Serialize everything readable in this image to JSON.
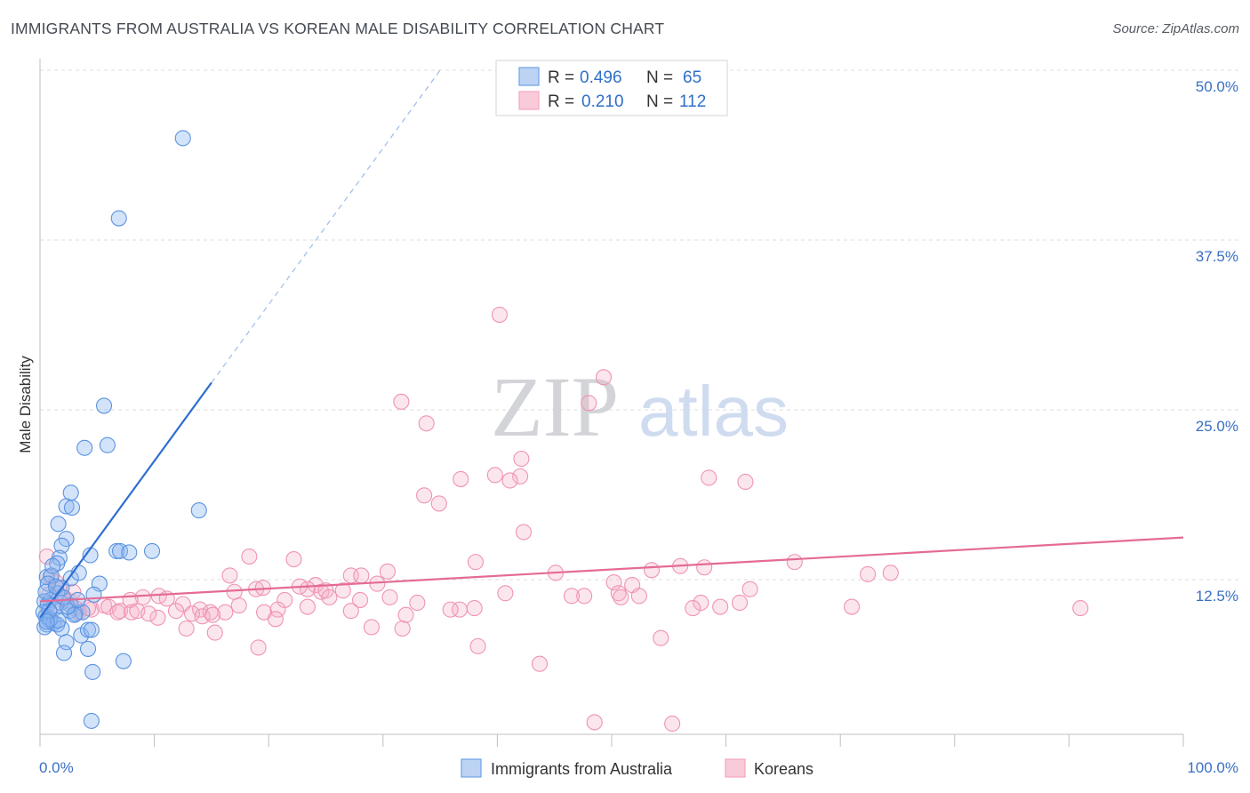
{
  "title": "IMMIGRANTS FROM AUSTRALIA VS KOREAN MALE DISABILITY CORRELATION CHART",
  "source": "Source: ZipAtlas.com",
  "watermark": {
    "zip": "ZIP",
    "atlas": "atlas"
  },
  "legend": {
    "r_label": "R =",
    "n_label": "N =",
    "rows": [
      {
        "r": "0.496",
        "n": "65"
      },
      {
        "r": "0.210",
        "n": "112"
      }
    ]
  },
  "chart_data": {
    "type": "scatter",
    "title": "IMMIGRANTS FROM AUSTRALIA VS KOREAN MALE DISABILITY CORRELATION CHART",
    "xlabel": "",
    "ylabel": "Male Disability",
    "xlim": [
      0,
      100
    ],
    "ylim": [
      0,
      52
    ],
    "x_tick_labels": [
      "0.0%",
      "100.0%"
    ],
    "y_ticks": [
      12.5,
      25.0,
      37.5,
      50.0
    ],
    "y_tick_labels": [
      "12.5%",
      "25.0%",
      "37.5%",
      "50.0%"
    ],
    "grid": true,
    "legend_position": "top-center",
    "series": [
      {
        "name": "Immigrants from Australia",
        "color": "#6fa3e8",
        "line_color": "#2f6fd1",
        "r": 0.496,
        "n": 65,
        "trend": {
          "x": [
            0.0,
            15.0
          ],
          "y": [
            9.7,
            27.0
          ],
          "dashed_to": [
            35.0,
            50.0
          ]
        },
        "points": [
          [
            12.5,
            45.0
          ],
          [
            6.9,
            39.1
          ],
          [
            5.6,
            25.3
          ],
          [
            5.9,
            22.4
          ],
          [
            3.9,
            22.2
          ],
          [
            13.9,
            17.6
          ],
          [
            2.7,
            18.9
          ],
          [
            2.3,
            17.9
          ],
          [
            2.8,
            17.8
          ],
          [
            1.6,
            16.6
          ],
          [
            2.3,
            15.5
          ],
          [
            1.9,
            15.0
          ],
          [
            6.7,
            14.6
          ],
          [
            7.0,
            14.6
          ],
          [
            9.8,
            14.6
          ],
          [
            7.8,
            14.5
          ],
          [
            4.4,
            14.3
          ],
          [
            1.7,
            14.1
          ],
          [
            1.5,
            13.7
          ],
          [
            0.6,
            12.7
          ],
          [
            1.0,
            12.8
          ],
          [
            2.7,
            12.6
          ],
          [
            3.4,
            13.0
          ],
          [
            5.2,
            12.2
          ],
          [
            1.9,
            11.9
          ],
          [
            1.5,
            11.5
          ],
          [
            0.9,
            11.0
          ],
          [
            0.4,
            10.9
          ],
          [
            0.7,
            10.7
          ],
          [
            4.7,
            11.4
          ],
          [
            1.8,
            10.8
          ],
          [
            2.7,
            10.6
          ],
          [
            2.6,
            10.2
          ],
          [
            3.1,
            10.0
          ],
          [
            3.7,
            10.1
          ],
          [
            0.3,
            10.1
          ],
          [
            0.5,
            9.8
          ],
          [
            0.8,
            9.5
          ],
          [
            0.6,
            9.2
          ],
          [
            0.4,
            9.0
          ],
          [
            1.2,
            9.3
          ],
          [
            1.5,
            9.2
          ],
          [
            1.9,
            8.9
          ],
          [
            3.6,
            8.4
          ],
          [
            4.2,
            8.8
          ],
          [
            4.5,
            8.8
          ],
          [
            2.3,
            7.9
          ],
          [
            4.2,
            7.4
          ],
          [
            2.1,
            7.1
          ],
          [
            7.3,
            6.5
          ],
          [
            4.6,
            5.7
          ],
          [
            4.5,
            2.1
          ],
          [
            0.9,
            9.6
          ],
          [
            1.3,
            10.4
          ],
          [
            2.0,
            11.2
          ],
          [
            0.7,
            12.2
          ],
          [
            1.1,
            13.5
          ],
          [
            3.0,
            9.9
          ],
          [
            0.5,
            11.6
          ],
          [
            1.6,
            9.5
          ],
          [
            2.4,
            10.5
          ],
          [
            0.8,
            10.2
          ],
          [
            1.4,
            12.0
          ],
          [
            0.6,
            9.4
          ],
          [
            3.3,
            11.0
          ]
        ]
      },
      {
        "name": "Koreans",
        "color": "#f4a6bf",
        "line_color": "#e46b95",
        "r": 0.21,
        "n": 112,
        "trend": {
          "x": [
            0.0,
            100.0
          ],
          "y": [
            10.9,
            15.6
          ]
        },
        "points": [
          [
            40.2,
            32.0
          ],
          [
            49.3,
            27.4
          ],
          [
            31.6,
            25.6
          ],
          [
            48.0,
            25.5
          ],
          [
            33.8,
            24.0
          ],
          [
            42.1,
            21.4
          ],
          [
            42.0,
            20.1
          ],
          [
            36.8,
            19.9
          ],
          [
            39.8,
            20.2
          ],
          [
            41.1,
            19.8
          ],
          [
            58.5,
            20.0
          ],
          [
            61.7,
            19.7
          ],
          [
            33.6,
            18.7
          ],
          [
            34.9,
            18.1
          ],
          [
            42.3,
            16.0
          ],
          [
            18.3,
            14.2
          ],
          [
            22.2,
            14.0
          ],
          [
            38.1,
            13.8
          ],
          [
            66.0,
            13.8
          ],
          [
            56.0,
            13.5
          ],
          [
            58.1,
            13.4
          ],
          [
            53.5,
            13.2
          ],
          [
            45.1,
            13.0
          ],
          [
            72.4,
            12.9
          ],
          [
            74.4,
            13.0
          ],
          [
            16.6,
            12.8
          ],
          [
            27.2,
            12.8
          ],
          [
            28.1,
            12.8
          ],
          [
            30.4,
            13.1
          ],
          [
            29.5,
            12.2
          ],
          [
            24.1,
            12.1
          ],
          [
            50.2,
            12.3
          ],
          [
            51.8,
            12.1
          ],
          [
            23.4,
            11.8
          ],
          [
            18.9,
            11.8
          ],
          [
            19.5,
            11.9
          ],
          [
            17.0,
            11.6
          ],
          [
            24.6,
            11.6
          ],
          [
            26.5,
            11.7
          ],
          [
            25.0,
            11.7
          ],
          [
            40.7,
            11.5
          ],
          [
            47.6,
            11.3
          ],
          [
            62.1,
            11.8
          ],
          [
            50.6,
            11.5
          ],
          [
            52.4,
            11.3
          ],
          [
            46.5,
            11.3
          ],
          [
            50.8,
            11.2
          ],
          [
            9.0,
            11.2
          ],
          [
            10.4,
            11.3
          ],
          [
            11.1,
            11.1
          ],
          [
            7.9,
            11.0
          ],
          [
            12.5,
            10.7
          ],
          [
            14.0,
            10.3
          ],
          [
            21.4,
            11.0
          ],
          [
            25.3,
            11.2
          ],
          [
            28.0,
            11.0
          ],
          [
            30.6,
            11.2
          ],
          [
            33.0,
            10.8
          ],
          [
            36.7,
            10.3
          ],
          [
            38.0,
            10.4
          ],
          [
            57.8,
            10.8
          ],
          [
            61.2,
            10.8
          ],
          [
            59.5,
            10.5
          ],
          [
            57.1,
            10.4
          ],
          [
            71.0,
            10.5
          ],
          [
            91.0,
            10.4
          ],
          [
            5.6,
            10.6
          ],
          [
            6.0,
            10.5
          ],
          [
            7.0,
            10.2
          ],
          [
            8.0,
            10.1
          ],
          [
            8.5,
            10.2
          ],
          [
            11.9,
            10.2
          ],
          [
            13.3,
            10.0
          ],
          [
            14.9,
            10.1
          ],
          [
            16.2,
            10.1
          ],
          [
            19.6,
            10.1
          ],
          [
            20.8,
            10.3
          ],
          [
            23.4,
            10.5
          ],
          [
            27.2,
            10.2
          ],
          [
            32.0,
            9.9
          ],
          [
            3.1,
            10.4
          ],
          [
            4.5,
            10.3
          ],
          [
            6.8,
            10.1
          ],
          [
            10.3,
            9.7
          ],
          [
            14.2,
            9.8
          ],
          [
            15.1,
            9.9
          ],
          [
            20.6,
            9.6
          ],
          [
            12.8,
            8.9
          ],
          [
            15.3,
            8.6
          ],
          [
            29.0,
            9.0
          ],
          [
            31.7,
            8.9
          ],
          [
            54.3,
            8.2
          ],
          [
            19.1,
            7.5
          ],
          [
            38.3,
            7.6
          ],
          [
            43.7,
            6.3
          ],
          [
            0.6,
            14.2
          ],
          [
            0.9,
            12.7
          ],
          [
            1.7,
            11.8
          ],
          [
            2.1,
            11.2
          ],
          [
            2.6,
            10.9
          ],
          [
            0.8,
            11.4
          ],
          [
            1.2,
            10.6
          ],
          [
            3.4,
            10.1
          ],
          [
            4.2,
            10.4
          ],
          [
            22.7,
            12.0
          ],
          [
            35.9,
            10.3
          ],
          [
            17.4,
            10.6
          ],
          [
            9.5,
            10.0
          ],
          [
            48.5,
            2.0
          ],
          [
            55.3,
            1.9
          ],
          [
            1.4,
            12.3
          ],
          [
            2.9,
            11.6
          ]
        ]
      }
    ]
  }
}
